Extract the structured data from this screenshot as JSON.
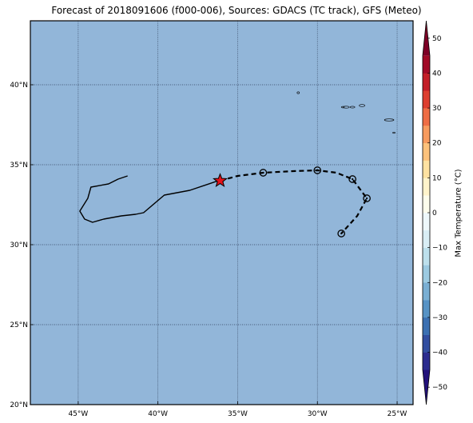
{
  "title": "Forecast of 2018091606 (f000-006), Sources: GDACS (TC track), GFS (Meteo)",
  "map": {
    "lon_range": [
      -48,
      -24
    ],
    "lat_range": [
      20,
      44
    ],
    "ocean_color": "#92b6d9",
    "lon_ticks": [
      {
        "value": -45,
        "label": "45°W"
      },
      {
        "value": -40,
        "label": "40°W"
      },
      {
        "value": -35,
        "label": "35°W"
      },
      {
        "value": -30,
        "label": "30°W"
      },
      {
        "value": -25,
        "label": "25°W"
      }
    ],
    "lat_ticks": [
      {
        "value": 20,
        "label": "20°N"
      },
      {
        "value": 25,
        "label": "25°N"
      },
      {
        "value": 30,
        "label": "30°N"
      },
      {
        "value": 35,
        "label": "35°N"
      },
      {
        "value": 40,
        "label": "40°N"
      }
    ],
    "past_track": [
      [
        -41.9,
        34.3
      ],
      [
        -42.5,
        34.1
      ],
      [
        -43.1,
        33.8
      ],
      [
        -44.2,
        33.6
      ],
      [
        -44.4,
        32.9
      ],
      [
        -44.9,
        32.1
      ],
      [
        -44.6,
        31.6
      ],
      [
        -44.1,
        31.4
      ],
      [
        -43.4,
        31.6
      ],
      [
        -42.3,
        31.8
      ],
      [
        -41.4,
        31.9
      ],
      [
        -40.9,
        32.0
      ],
      [
        -39.6,
        33.1
      ],
      [
        -38.0,
        33.4
      ],
      [
        -36.3,
        33.97
      ]
    ],
    "current_position": [
      -36.1,
      34.0
    ],
    "forecast_track": [
      [
        -36.1,
        34.0
      ],
      [
        -35.0,
        34.3
      ],
      [
        -33.4,
        34.5
      ],
      [
        -31.5,
        34.6
      ],
      [
        -30.0,
        34.65
      ],
      [
        -28.8,
        34.5
      ],
      [
        -27.8,
        34.1
      ],
      [
        -26.9,
        32.9
      ],
      [
        -27.5,
        31.8
      ],
      [
        -28.5,
        30.7
      ]
    ],
    "forecast_points": [
      [
        -33.4,
        34.5
      ],
      [
        -30.0,
        34.65
      ],
      [
        -27.8,
        34.1
      ],
      [
        -26.9,
        32.9
      ],
      [
        -28.5,
        30.7
      ]
    ],
    "island_color": "#000000"
  },
  "colorbar": {
    "label": "Max Temperature (°C)",
    "levels": [
      -55,
      -50,
      -45,
      -40,
      -35,
      -30,
      -25,
      -20,
      -15,
      -10,
      -5,
      0,
      5,
      10,
      15,
      20,
      25,
      30,
      35,
      40,
      45,
      50,
      55
    ],
    "colors": [
      "#22117a",
      "#2c2c8f",
      "#324ea0",
      "#3b70b2",
      "#5793c5",
      "#7aafd3",
      "#9ccae1",
      "#bde0ec",
      "#d9eef5",
      "#eef8fb",
      "#fdfdec",
      "#fff4cb",
      "#fee2a1",
      "#fdc27b",
      "#f79b5e",
      "#ee6d44",
      "#dd3f2f",
      "#c31e27",
      "#a10a26",
      "#7d0026"
    ],
    "ticks": [
      {
        "value": 50,
        "label": "50"
      },
      {
        "value": 40,
        "label": "40"
      },
      {
        "value": 30,
        "label": "30"
      },
      {
        "value": 20,
        "label": "20"
      },
      {
        "value": 10,
        "label": "10"
      },
      {
        "value": 0,
        "label": "0"
      },
      {
        "value": -10,
        "label": "−10"
      },
      {
        "value": -20,
        "label": "−20"
      },
      {
        "value": -30,
        "label": "−30"
      },
      {
        "value": -40,
        "label": "−40"
      },
      {
        "value": -50,
        "label": "−50"
      }
    ]
  }
}
